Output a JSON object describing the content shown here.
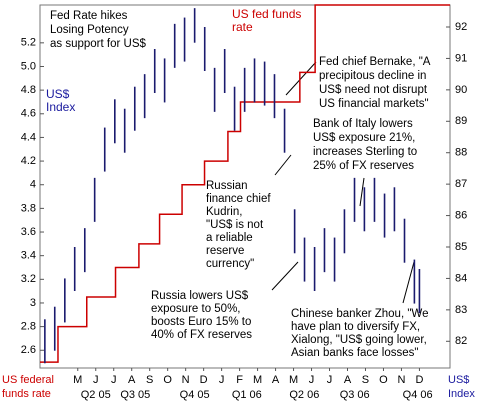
{
  "chart_data": {
    "type": "line",
    "annotations": [
      {
        "lines": [
          "Fed Rate hikes",
          "Losing Potency",
          "as support for US$"
        ]
      },
      {
        "lines": [
          "Fed chief Bernake, \"A",
          "precipitous decline in",
          "US$ need not disrupt",
          "US financial markets\""
        ]
      },
      {
        "lines": [
          "Bank of Italy lowers",
          "US$ exposure 21%,",
          "increases Sterling to",
          "25% of FX reserves"
        ]
      },
      {
        "lines": [
          "Russian",
          "finance chief",
          "Kudrin,",
          "\"US$ is not",
          "a reliable",
          "reserve",
          "currency\""
        ]
      },
      {
        "lines": [
          "Russia lowers US$",
          "exposure to 50%,",
          "boosts Euro 15% to",
          "40% of FX reserves"
        ]
      },
      {
        "lines": [
          "Chinese banker Zhou, \"We",
          "have plan to diversify FX,",
          "Xialong, \"US$ going lower,",
          "Asian banks face losses\""
        ]
      }
    ],
    "axis_labels": {
      "y": [
        "US federal",
        "funds rate"
      ],
      "y2": [
        "US$",
        "Index"
      ]
    },
    "xlim": [
      -2.1,
      20.7
    ],
    "xticks": [
      {
        "value": 0,
        "label": "M"
      },
      {
        "value": 1,
        "label": "J"
      },
      {
        "value": 2,
        "label": "J"
      },
      {
        "value": 3,
        "label": "A"
      },
      {
        "value": 4,
        "label": "S"
      },
      {
        "value": 5,
        "label": "O"
      },
      {
        "value": 6,
        "label": "N"
      },
      {
        "value": 7,
        "label": "D"
      },
      {
        "value": 8,
        "label": "J"
      },
      {
        "value": 9,
        "label": "F"
      },
      {
        "value": 10,
        "label": "M"
      },
      {
        "value": 11,
        "label": "A"
      },
      {
        "value": 12,
        "label": "M"
      },
      {
        "value": 13,
        "label": "J"
      },
      {
        "value": 14,
        "label": "J"
      },
      {
        "value": 15,
        "label": "A"
      },
      {
        "value": 16,
        "label": "S"
      },
      {
        "value": 17,
        "label": "O"
      },
      {
        "value": 18,
        "label": "N"
      },
      {
        "value": 19,
        "label": "D"
      }
    ],
    "quarter_labels": [
      {
        "value": 1,
        "label": "Q2 05"
      },
      {
        "value": 3.2,
        "label": "Q3 05"
      },
      {
        "value": 6.5,
        "label": "Q4 05"
      },
      {
        "value": 9.4,
        "label": "Q1 06"
      },
      {
        "value": 12.6,
        "label": "Q2 06"
      },
      {
        "value": 15.4,
        "label": "Q3 06"
      },
      {
        "value": 18.9,
        "label": "Q4 06"
      }
    ],
    "ylim": [
      2.45,
      5.52
    ],
    "yticks": [
      2.6,
      2.8,
      3,
      3.2,
      3.4,
      3.6,
      3.8,
      4,
      4.2,
      4.4,
      4.6,
      4.8,
      {
        "value": 5,
        "label": "5.0"
      },
      5.2
    ],
    "y2lim": [
      81.15,
      92.7
    ],
    "y2ticks": [
      82,
      83,
      84,
      85,
      86,
      87,
      88,
      89,
      90,
      91,
      92
    ],
    "series": [
      {
        "name": "US fed funds rate",
        "color": "#cc0000",
        "step": true,
        "x": [
          -2.1,
          -1.1,
          0.5,
          2.1,
          3.4,
          4.55,
          5.8,
          7.05,
          8.35,
          9.05,
          12.35,
          13.2,
          20.7
        ],
        "values": [
          2.5,
          2.8,
          3.05,
          3.3,
          3.5,
          3.75,
          4.0,
          4.2,
          4.45,
          4.7,
          4.95,
          5.52,
          5.52
        ]
      },
      {
        "name": "US$ Index",
        "color": "#1a1a6e",
        "axis": "y2",
        "kind": "range-bar",
        "x": [
          -1.83,
          -1.28,
          -0.72,
          -0.17,
          0.39,
          0.94,
          1.5,
          2.06,
          2.61,
          3.17,
          3.72,
          4.28,
          4.83,
          5.39,
          5.94,
          6.5,
          7.06,
          7.61,
          8.17,
          8.72,
          9.28,
          9.83,
          10.39,
          10.94,
          11.5,
          12.06,
          12.61,
          13.17,
          13.72,
          14.28,
          14.83,
          15.39,
          15.94,
          16.5,
          17.06,
          17.61,
          18.17,
          18.72,
          19.0
        ],
        "high": [
          82.7,
          83.1,
          84.0,
          85.0,
          85.6,
          87.2,
          88.8,
          89.7,
          89.4,
          90.1,
          90.5,
          91.3,
          91.0,
          92.1,
          92.3,
          92.6,
          92.0,
          90.7,
          91.3,
          90.1,
          90.7,
          91.0,
          90.9,
          90.5,
          89.4,
          86.2,
          85.3,
          85.0,
          85.6,
          85.3,
          86.2,
          87.2,
          86.9,
          87.2,
          86.7,
          86.9,
          85.9,
          84.6,
          84.3
        ],
        "low": [
          81.3,
          81.7,
          82.6,
          83.6,
          84.2,
          85.8,
          87.4,
          88.3,
          88.0,
          88.7,
          89.1,
          89.9,
          89.6,
          90.7,
          90.9,
          91.5,
          90.6,
          89.3,
          89.9,
          88.7,
          89.3,
          89.6,
          89.5,
          89.1,
          88.0,
          84.8,
          83.9,
          83.6,
          84.2,
          83.9,
          84.8,
          85.8,
          85.5,
          85.8,
          85.3,
          85.5,
          84.5,
          83.2,
          82.9
        ]
      }
    ]
  }
}
